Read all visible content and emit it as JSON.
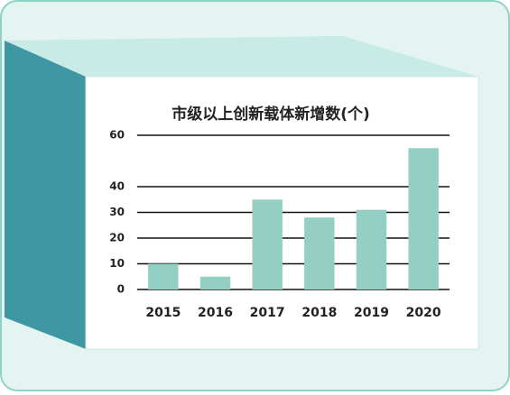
{
  "chart_data": {
    "type": "bar",
    "title": "市级以上创新载体新增数(个)",
    "categories": [
      "2015",
      "2016",
      "2017",
      "2018",
      "2019",
      "2020"
    ],
    "values": [
      10,
      5,
      35,
      28,
      31,
      55
    ],
    "color": "#93d0c3",
    "ylim": [
      0,
      60
    ],
    "yticks": [
      0,
      10,
      20,
      30,
      40,
      60
    ],
    "grid": true
  }
}
